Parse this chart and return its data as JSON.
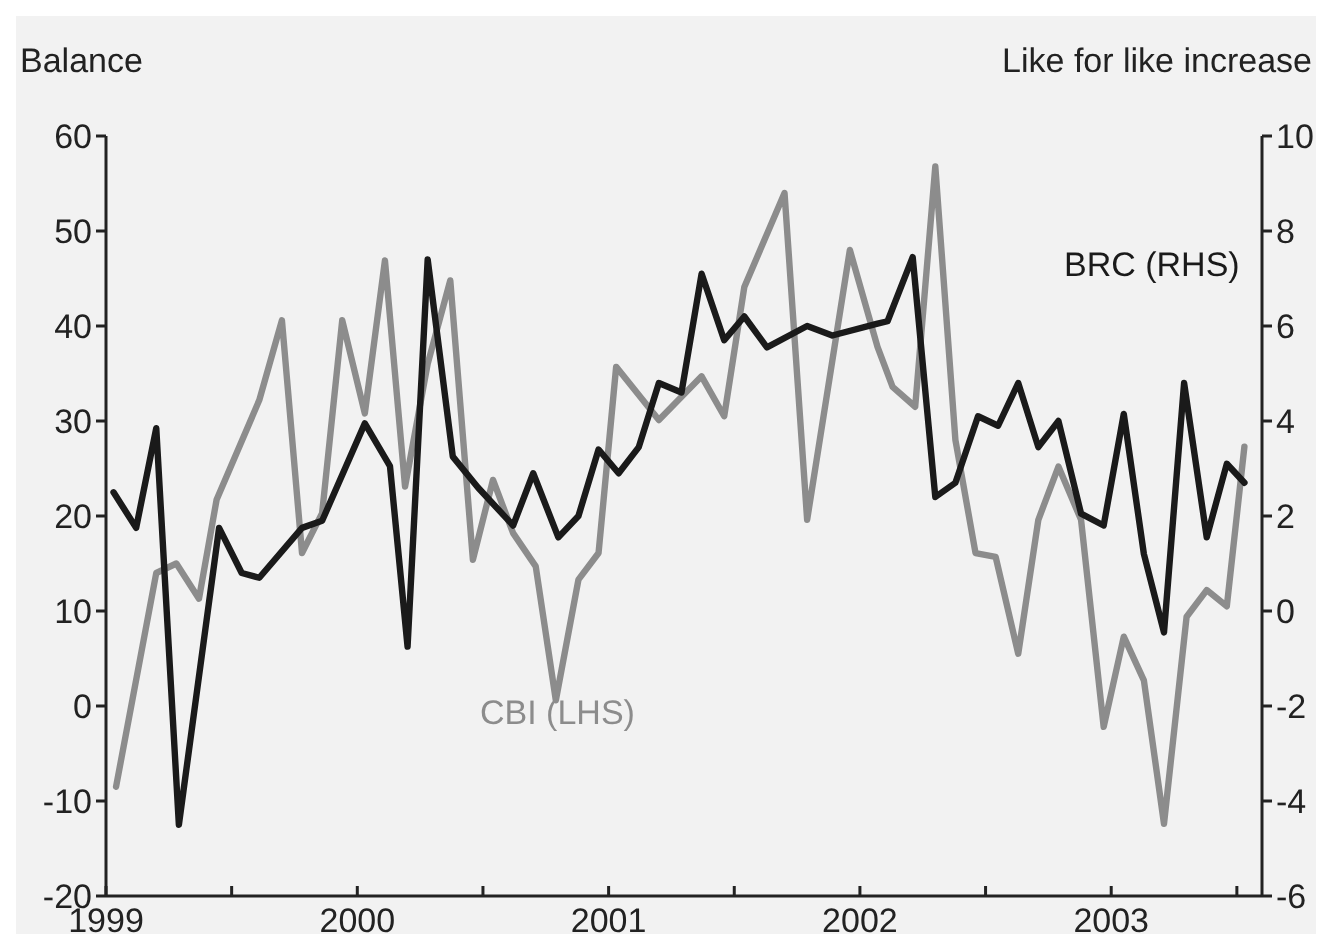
{
  "chart_data": {
    "type": "line",
    "ylabel": "Balance",
    "y2label": "Like for like increase",
    "xlim": [
      1999,
      2003.6
    ],
    "xticks": [
      1999,
      {
        "value": 1999.5,
        "label": null
      },
      2000,
      {
        "value": 2000.5,
        "label": null
      },
      2001,
      {
        "value": 2001.5,
        "label": null
      },
      2002,
      {
        "value": 2002.5,
        "label": null
      },
      2003,
      {
        "value": 2003.5,
        "label": null
      }
    ],
    "ylim": [
      -20,
      60
    ],
    "yticks": [
      -20,
      -10,
      0,
      10,
      20,
      30,
      40,
      50,
      60
    ],
    "y2lim": [
      -6,
      10
    ],
    "y2ticks": [
      -6,
      -4,
      -2,
      0,
      2,
      4,
      6,
      8,
      10
    ],
    "grid": false,
    "line_style": "solid",
    "marker": "none",
    "series": [
      {
        "name": "CBI (LHS)",
        "color": "#8c8c8c",
        "x": [
          1999.04,
          1999.2,
          1999.28,
          1999.37,
          1999.44,
          1999.61,
          1999.7,
          1999.78,
          1999.86,
          1999.94,
          2000.03,
          2000.11,
          2000.19,
          2000.28,
          2000.37,
          2000.46,
          2000.54,
          2000.62,
          2000.71,
          2000.79,
          2000.88,
          2000.96,
          2001.03,
          2001.2,
          2001.37,
          2001.46,
          2001.54,
          2001.7,
          2001.79,
          2001.96,
          2002.07,
          2002.13,
          2002.22,
          2002.3,
          2002.38,
          2002.46,
          2002.54,
          2002.63,
          2002.71,
          2002.79,
          2002.88,
          2002.97,
          2003.05,
          2003.13,
          2003.21,
          2003.3,
          2003.38,
          2003.46,
          2003.53
        ],
        "values": [
          -8.5,
          14,
          15,
          11.3,
          21.7,
          32.2,
          40.6,
          16.1,
          20.3,
          40.6,
          30.8,
          46.9,
          23.1,
          36,
          44.8,
          15.4,
          23.8,
          18.2,
          14.7,
          0.6,
          13.3,
          16.1,
          35.7,
          30.1,
          34.7,
          30.5,
          44.1,
          54,
          19.6,
          48,
          37.8,
          33.6,
          31.5,
          56.8,
          28,
          16.1,
          15.7,
          5.5,
          19.6,
          25.2,
          19.6,
          -2.2,
          7.3,
          2.7,
          -12.4,
          9.4,
          12.2,
          10.5,
          27.3
        ]
      },
      {
        "name": "BRC (RHS)",
        "color": "#1a1a1a",
        "axis": "y2",
        "x": [
          1999.03,
          1999.12,
          1999.2,
          1999.29,
          1999.45,
          1999.54,
          1999.61,
          1999.78,
          1999.86,
          2000.03,
          2000.13,
          2000.2,
          2000.28,
          2000.38,
          2000.48,
          2000.62,
          2000.7,
          2000.8,
          2000.88,
          2000.96,
          2001.04,
          2001.12,
          2001.2,
          2001.29,
          2001.37,
          2001.46,
          2001.54,
          2001.63,
          2001.79,
          2001.89,
          2002.07,
          2002.11,
          2002.21,
          2002.3,
          2002.38,
          2002.47,
          2002.55,
          2002.63,
          2002.71,
          2002.79,
          2002.88,
          2002.97,
          2003.05,
          2003.13,
          2003.21,
          2003.29,
          2003.38,
          2003.46,
          2003.53
        ],
        "values": [
          2.5,
          1.75,
          3.85,
          -4.5,
          1.75,
          0.8,
          0.7,
          1.75,
          1.9,
          3.95,
          3.05,
          -0.75,
          7.4,
          3.25,
          2.6,
          1.8,
          2.9,
          1.55,
          2,
          3.4,
          2.9,
          3.45,
          4.8,
          4.6,
          7.1,
          5.7,
          6.2,
          5.55,
          6,
          5.8,
          6.05,
          6.1,
          7.45,
          2.4,
          2.7,
          4.1,
          3.9,
          4.8,
          3.45,
          4,
          2.05,
          1.8,
          4.15,
          1.2,
          -0.45,
          4.8,
          1.55,
          3.1,
          2.7
        ]
      }
    ]
  }
}
